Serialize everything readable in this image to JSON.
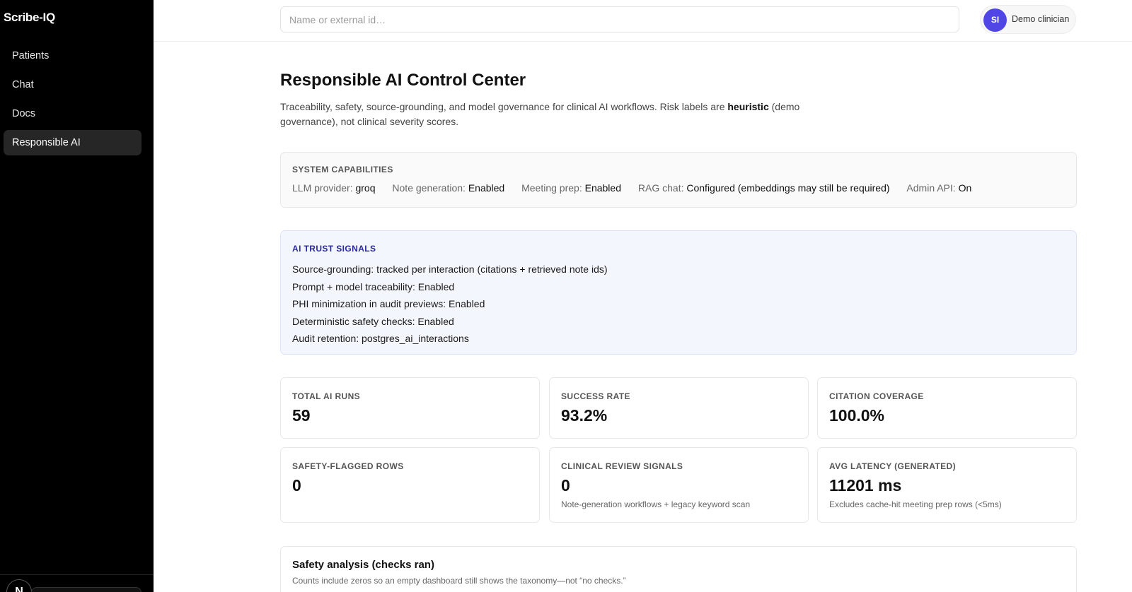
{
  "app": {
    "brand": "Scribe-IQ"
  },
  "sidebar": {
    "items": [
      {
        "label": "Patients"
      },
      {
        "label": "Chat"
      },
      {
        "label": "Docs"
      },
      {
        "label": "Responsible AI",
        "active": true
      }
    ],
    "footer_badge": "N"
  },
  "header": {
    "search_placeholder": "Name or external id…",
    "user": {
      "initials": "SI",
      "name": "Demo clinician"
    }
  },
  "page": {
    "title": "Responsible AI Control Center",
    "description_before": "Traceability, safety, source-grounding, and model governance for clinical AI workflows. Risk labels are ",
    "description_bold": "heuristic",
    "description_after": " (demo governance), not clinical severity scores."
  },
  "capabilities": {
    "label": "SYSTEM CAPABILITIES",
    "items": [
      {
        "key": "LLM provider:",
        "value": "groq"
      },
      {
        "key": "Note generation:",
        "value": "Enabled"
      },
      {
        "key": "Meeting prep:",
        "value": "Enabled"
      },
      {
        "key": "RAG chat:",
        "value": "Configured (embeddings may still be required)"
      },
      {
        "key": "Admin API:",
        "value": "On"
      }
    ]
  },
  "trust_signals": {
    "label": "AI TRUST SIGNALS",
    "items": [
      "Source-grounding: tracked per interaction (citations + retrieved note ids)",
      "Prompt + model traceability: Enabled",
      "PHI minimization in audit previews: Enabled",
      "Deterministic safety checks: Enabled",
      "Audit retention: postgres_ai_interactions"
    ]
  },
  "metrics": [
    {
      "label": "TOTAL AI RUNS",
      "value": "59",
      "note": ""
    },
    {
      "label": "SUCCESS RATE",
      "value": "93.2%",
      "note": ""
    },
    {
      "label": "CITATION COVERAGE",
      "value": "100.0%",
      "note": ""
    },
    {
      "label": "SAFETY-FLAGGED ROWS",
      "value": "0",
      "note": ""
    },
    {
      "label": "CLINICAL REVIEW SIGNALS",
      "value": "0",
      "note": "Note-generation workflows + legacy keyword scan"
    },
    {
      "label": "AVG LATENCY (GENERATED)",
      "value": "11201 ms",
      "note": "Excludes cache-hit meeting prep rows (<5ms)"
    }
  ],
  "safety_analysis": {
    "title": "Safety analysis (checks ran)",
    "subtitle": "Counts include zeros so an empty dashboard still shows the taxonomy—not “no checks.”"
  },
  "colors": {
    "sidebar_bg": "#000000",
    "active_nav_bg": "#262626",
    "avatar_bg": "#4f46e5",
    "trust_bg": "#f4f6fd",
    "trust_label": "#2a2aa0"
  }
}
